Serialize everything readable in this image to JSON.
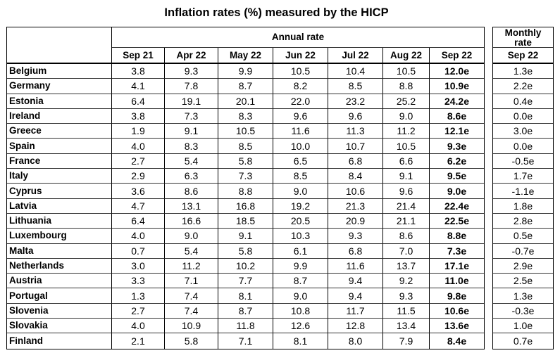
{
  "chart_data": {
    "type": "table",
    "title": "Inflation rates (%) measured by the HICP",
    "annual_header": "Annual rate",
    "monthly_header": "Monthly rate",
    "columns": [
      "Sep 21",
      "Apr 22",
      "May 22",
      "Jun 22",
      "Jul 22",
      "Aug 22",
      "Sep 22"
    ],
    "monthly_columns": [
      "Sep 22"
    ],
    "rows": [
      {
        "country": "Belgium",
        "annual": [
          "3.8",
          "9.3",
          "9.9",
          "10.5",
          "10.4",
          "10.5",
          "12.0e"
        ],
        "monthly": "1.3e"
      },
      {
        "country": "Germany",
        "annual": [
          "4.1",
          "7.8",
          "8.7",
          "8.2",
          "8.5",
          "8.8",
          "10.9e"
        ],
        "monthly": "2.2e"
      },
      {
        "country": "Estonia",
        "annual": [
          "6.4",
          "19.1",
          "20.1",
          "22.0",
          "23.2",
          "25.2",
          "24.2e"
        ],
        "monthly": "0.4e"
      },
      {
        "country": "Ireland",
        "annual": [
          "3.8",
          "7.3",
          "8.3",
          "9.6",
          "9.6",
          "9.0",
          "8.6e"
        ],
        "monthly": "0.0e"
      },
      {
        "country": "Greece",
        "annual": [
          "1.9",
          "9.1",
          "10.5",
          "11.6",
          "11.3",
          "11.2",
          "12.1e"
        ],
        "monthly": "3.0e"
      },
      {
        "country": "Spain",
        "annual": [
          "4.0",
          "8.3",
          "8.5",
          "10.0",
          "10.7",
          "10.5",
          "9.3e"
        ],
        "monthly": "0.0e"
      },
      {
        "country": "France",
        "annual": [
          "2.7",
          "5.4",
          "5.8",
          "6.5",
          "6.8",
          "6.6",
          "6.2e"
        ],
        "monthly": "-0.5e"
      },
      {
        "country": "Italy",
        "annual": [
          "2.9",
          "6.3",
          "7.3",
          "8.5",
          "8.4",
          "9.1",
          "9.5e"
        ],
        "monthly": "1.7e"
      },
      {
        "country": "Cyprus",
        "annual": [
          "3.6",
          "8.6",
          "8.8",
          "9.0",
          "10.6",
          "9.6",
          "9.0e"
        ],
        "monthly": "-1.1e"
      },
      {
        "country": "Latvia",
        "annual": [
          "4.7",
          "13.1",
          "16.8",
          "19.2",
          "21.3",
          "21.4",
          "22.4e"
        ],
        "monthly": "1.8e"
      },
      {
        "country": "Lithuania",
        "annual": [
          "6.4",
          "16.6",
          "18.5",
          "20.5",
          "20.9",
          "21.1",
          "22.5e"
        ],
        "monthly": "2.8e"
      },
      {
        "country": "Luxembourg",
        "annual": [
          "4.0",
          "9.0",
          "9.1",
          "10.3",
          "9.3",
          "8.6",
          "8.8e"
        ],
        "monthly": "0.5e"
      },
      {
        "country": "Malta",
        "annual": [
          "0.7",
          "5.4",
          "5.8",
          "6.1",
          "6.8",
          "7.0",
          "7.3e"
        ],
        "monthly": "-0.7e"
      },
      {
        "country": "Netherlands",
        "annual": [
          "3.0",
          "11.2",
          "10.2",
          "9.9",
          "11.6",
          "13.7",
          "17.1e"
        ],
        "monthly": "2.9e"
      },
      {
        "country": "Austria",
        "annual": [
          "3.3",
          "7.1",
          "7.7",
          "8.7",
          "9.4",
          "9.2",
          "11.0e"
        ],
        "monthly": "2.5e"
      },
      {
        "country": "Portugal",
        "annual": [
          "1.3",
          "7.4",
          "8.1",
          "9.0",
          "9.4",
          "9.3",
          "9.8e"
        ],
        "monthly": "1.3e"
      },
      {
        "country": "Slovenia",
        "annual": [
          "2.7",
          "7.4",
          "8.7",
          "10.8",
          "11.7",
          "11.5",
          "10.6e"
        ],
        "monthly": "-0.3e"
      },
      {
        "country": "Slovakia",
        "annual": [
          "4.0",
          "10.9",
          "11.8",
          "12.6",
          "12.8",
          "13.4",
          "13.6e"
        ],
        "monthly": "1.0e"
      },
      {
        "country": "Finland",
        "annual": [
          "2.1",
          "5.8",
          "7.1",
          "8.1",
          "8.0",
          "7.9",
          "8.4e"
        ],
        "monthly": "0.7e"
      }
    ]
  }
}
